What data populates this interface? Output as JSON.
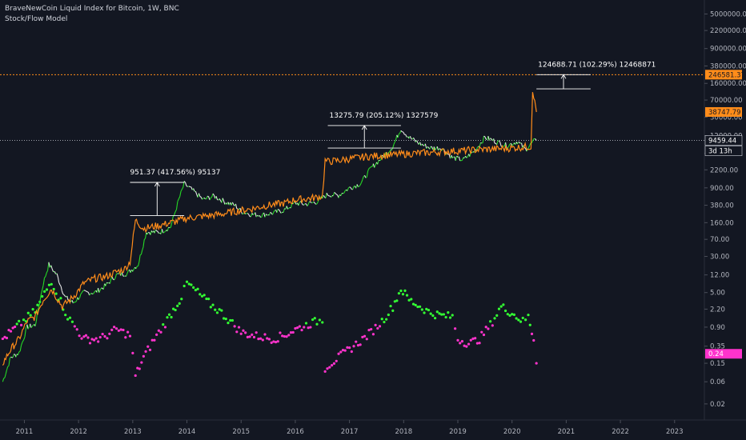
{
  "legend": {
    "title": "BraveNewCoin Liquid Index for Bitcoin, 1W, BNC",
    "indicator": "Stock/Flow Model"
  },
  "colors": {
    "background": "#131722",
    "price_up": "#26d926",
    "price_down": "#e6e6e6",
    "model_line": "#ff8c1a",
    "ratio_high": "#33ff33",
    "ratio_low": "#ff33cc",
    "axis_text": "#b2b5be",
    "grid": "#1e2230"
  },
  "badges": {
    "model_projection": "246581.37",
    "model_current": "38747.79",
    "price_current": "9459.44",
    "countdown": "3d 13h",
    "ratio_current": "0.24"
  },
  "annotations": [
    {
      "label": "951.37 (417.56%) 95137",
      "from": 227.84,
      "to": 1179.21
    },
    {
      "label": "13275.79 (205.12%) 1327579",
      "from": 6472.24,
      "to": 19748.03
    },
    {
      "label": "124688.71 (102.29%) 12468871",
      "from": 121900.0,
      "to": 246581.37
    }
  ],
  "chart_data": {
    "type": "line",
    "title": "BraveNewCoin Liquid Index for Bitcoin, 1W, BNC",
    "y_scale": "log",
    "y_ticks": [
      5000000,
      2200000,
      900000,
      380000,
      160000,
      70000,
      30000,
      12000,
      5000,
      2200,
      900,
      380,
      160,
      70,
      30,
      12,
      5,
      2.2,
      0.9,
      0.35,
      0.15,
      0.06,
      0.02
    ],
    "y_tick_labels": [
      "5000000.00",
      "2200000.00",
      "900000.00",
      "380000.00",
      "160000.00",
      "70000.00",
      "30000.00",
      "12000.00",
      "5000.00",
      "2200.00",
      "900.00",
      "380.00",
      "160.00",
      "70.00",
      "30.00",
      "12.00",
      "5.00",
      "2.20",
      "0.90",
      "0.35",
      "0.15",
      "0.06",
      "0.02"
    ],
    "x_ticks": [
      2011,
      2012,
      2013,
      2014,
      2015,
      2016,
      2017,
      2018,
      2019,
      2020,
      2021,
      2022,
      2023
    ],
    "x_tick_labels": [
      "2011",
      "2012",
      "2013",
      "2014",
      "2015",
      "2016",
      "2017",
      "2018",
      "2019",
      "2020",
      "2021",
      "2022",
      "2023"
    ],
    "xlim": [
      2010.55,
      2023.55
    ],
    "ylim": [
      0.009,
      10000000
    ],
    "grid": false,
    "series": [
      {
        "name": "",
        "role": "price",
        "x": [
          2010.6,
          2010.75,
          2010.9,
          2011.05,
          2011.2,
          2011.35,
          2011.45,
          2011.6,
          2011.75,
          2011.9,
          2012.1,
          2012.3,
          2012.5,
          2012.7,
          2012.9,
          2013.1,
          2013.25,
          2013.5,
          2013.7,
          2013.85,
          2013.95,
          2014.1,
          2014.3,
          2014.5,
          2014.7,
          2014.9,
          2015.0,
          2015.2,
          2015.4,
          2015.6,
          2015.8,
          2016.0,
          2016.2,
          2016.4,
          2016.6,
          2016.8,
          2017.0,
          2017.2,
          2017.4,
          2017.6,
          2017.8,
          2017.95,
          2018.1,
          2018.3,
          2018.5,
          2018.7,
          2018.9,
          2019.1,
          2019.3,
          2019.5,
          2019.7,
          2019.9,
          2020.1,
          2020.25,
          2020.4,
          2020.45
        ],
        "values": [
          0.06,
          0.2,
          0.25,
          0.9,
          1.0,
          8.0,
          20.0,
          12.0,
          4.0,
          3.0,
          5.0,
          5.0,
          7.0,
          12.0,
          13.0,
          20.0,
          100.0,
          100.0,
          130.0,
          500.0,
          1100.0,
          800.0,
          500.0,
          600.0,
          450.0,
          370.0,
          280.0,
          240.0,
          235.0,
          260.0,
          300.0,
          420.0,
          400.0,
          450.0,
          650.0,
          620.0,
          900.0,
          1100.0,
          2400.0,
          4000.0,
          7000.0,
          17000.0,
          11000.0,
          8000.0,
          6500.0,
          6500.0,
          4000.0,
          3600.0,
          5500.0,
          11000.0,
          9000.0,
          7300.0,
          9000.0,
          6000.0,
          9000.0,
          9459.44
        ]
      },
      {
        "name": "",
        "role": "stock_to_flow_model",
        "x": [
          2010.6,
          2010.75,
          2010.9,
          2011.05,
          2011.2,
          2011.35,
          2011.5,
          2011.7,
          2011.9,
          2012.1,
          2012.3,
          2012.5,
          2012.7,
          2012.85,
          2012.95,
          2013.05,
          2013.2,
          2013.5,
          2013.8,
          2014.0,
          2014.3,
          2014.6,
          2014.9,
          2015.2,
          2015.5,
          2015.8,
          2016.0,
          2016.2,
          2016.4,
          2016.5,
          2016.55,
          2016.6,
          2016.8,
          2017.0,
          2017.3,
          2017.6,
          2017.9,
          2018.2,
          2018.5,
          2018.8,
          2019.1,
          2019.4,
          2019.7,
          2020.0,
          2020.2,
          2020.35,
          2020.38,
          2020.42,
          2020.45
        ],
        "values": [
          0.15,
          0.3,
          0.5,
          1.2,
          1.5,
          3.5,
          6.0,
          2.5,
          4.0,
          8.0,
          10.0,
          11.0,
          14.0,
          16.0,
          23.0,
          180.0,
          120.0,
          140.0,
          170.0,
          200.0,
          220.0,
          240.0,
          280.0,
          320.0,
          380.0,
          420.0,
          500.0,
          520.0,
          560.0,
          600.0,
          3500.0,
          3300.0,
          3500.0,
          3800.0,
          4200.0,
          4500.0,
          4700.0,
          5000.0,
          5200.0,
          5500.0,
          5700.0,
          6000.0,
          6200.0,
          6500.0,
          6800.0,
          7000.0,
          121900.0,
          60000.0,
          38747.79
        ]
      },
      {
        "name": "",
        "role": "stock_to_flow_ratio",
        "x": [
          2010.6,
          2010.9,
          2011.2,
          2011.5,
          2011.8,
          2012.1,
          2012.4,
          2012.7,
          2012.95,
          2013.05,
          2013.2,
          2013.4,
          2013.6,
          2013.9,
          2014.0,
          2014.2,
          2014.4,
          2014.6,
          2014.8,
          2015.0,
          2015.2,
          2015.4,
          2015.6,
          2015.8,
          2016.0,
          2016.2,
          2016.4,
          2016.5,
          2016.55,
          2016.8,
          2017.0,
          2017.2,
          2017.4,
          2017.6,
          2017.8,
          2017.95,
          2018.1,
          2018.3,
          2018.5,
          2018.7,
          2018.9,
          2019.0,
          2019.2,
          2019.4,
          2019.6,
          2019.8,
          2020.0,
          2020.2,
          2020.3,
          2020.4,
          2020.45
        ],
        "values": [
          0.5,
          1.0,
          2.0,
          9.0,
          1.5,
          0.5,
          0.5,
          0.8,
          0.6,
          0.08,
          0.2,
          0.5,
          1.1,
          4.0,
          8.0,
          5.0,
          3.0,
          2.0,
          1.2,
          0.7,
          0.6,
          0.55,
          0.5,
          0.6,
          0.8,
          1.0,
          1.2,
          1.3,
          0.12,
          0.2,
          0.3,
          0.45,
          0.7,
          1.2,
          2.5,
          6.0,
          3.5,
          2.5,
          1.8,
          1.6,
          1.5,
          0.5,
          0.4,
          0.5,
          1.0,
          2.5,
          1.8,
          1.2,
          1.5,
          0.5,
          0.15
        ]
      }
    ]
  }
}
